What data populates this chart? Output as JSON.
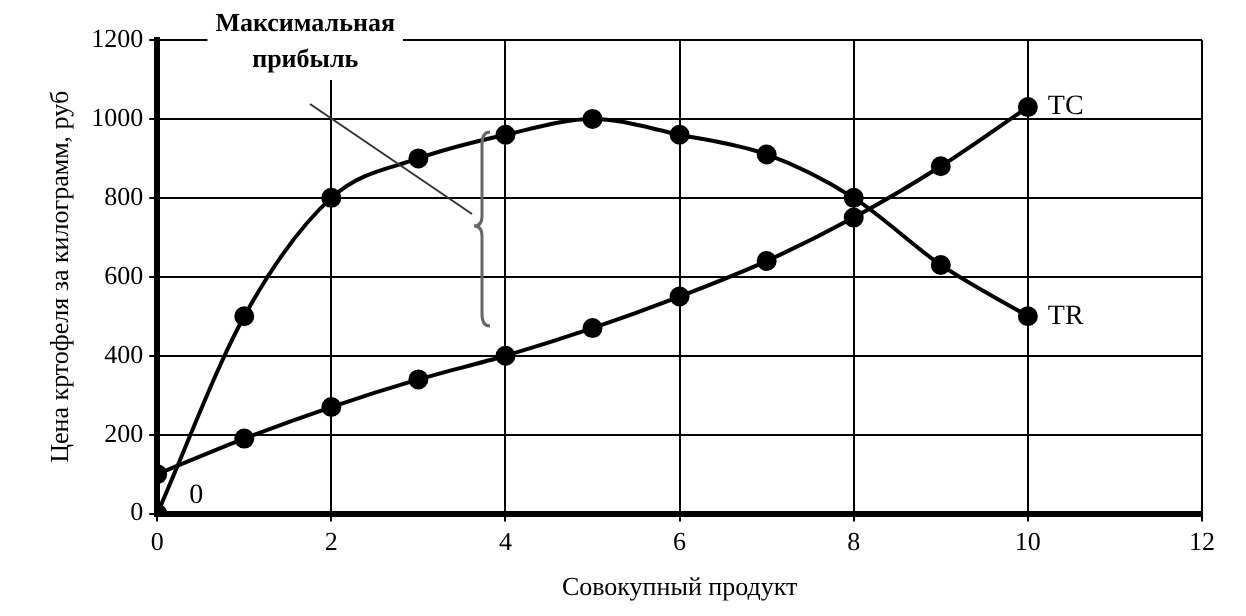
{
  "chart_data": {
    "type": "line",
    "xlabel": "Совокупный продукт",
    "ylabel": "Цена кртофеля за килограмм, руб",
    "x": [
      0,
      1,
      2,
      3,
      4,
      5,
      6,
      7,
      8,
      9,
      10
    ],
    "series": [
      {
        "name": "TR",
        "color": "#000000",
        "values": [
          0,
          500,
          800,
          900,
          960,
          1000,
          960,
          910,
          800,
          630,
          500
        ]
      },
      {
        "name": "TC",
        "color": "#000000",
        "values": [
          100,
          190,
          270,
          340,
          400,
          470,
          550,
          640,
          750,
          880,
          1030
        ]
      }
    ],
    "xlim": [
      0,
      12
    ],
    "xticks": [
      0,
      2,
      4,
      6,
      8,
      10,
      12
    ],
    "ylim": [
      0,
      1200
    ],
    "yticks": [
      0,
      200,
      400,
      600,
      800,
      1000,
      1200
    ],
    "grid": true,
    "legend": false,
    "marker": "circle",
    "line_style": "solid",
    "annotations": [
      "Максимальная прибыль",
      {
        "text": "0",
        "x": 0,
        "y": 0
      }
    ]
  }
}
